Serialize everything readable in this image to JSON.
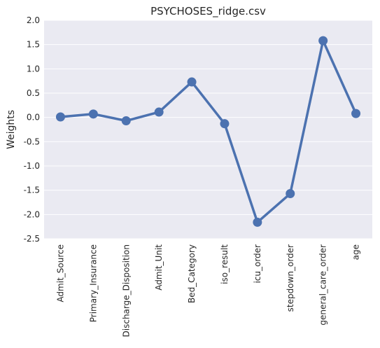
{
  "chart_data": {
    "type": "line",
    "title": "PSYCHOSES_ridge.csv",
    "xlabel": "",
    "ylabel": "Weights",
    "ylim": [
      -2.5,
      2.0
    ],
    "yticks": [
      "2.0",
      "1.5",
      "1.0",
      "0.5",
      "0.0",
      "-0.5",
      "-1.0",
      "-1.5",
      "-2.0",
      "-2.5"
    ],
    "categories": [
      "Admit_Source",
      "Primary_Insurance",
      "Discharge_Disposition",
      "Admit_Unit",
      "Bed_Category",
      "iso_result",
      "icu_order",
      "stepdown_order",
      "general_care_order",
      "age"
    ],
    "series": [
      {
        "values": [
          0.01,
          0.07,
          -0.07,
          0.11,
          0.73,
          -0.13,
          -2.16,
          -1.57,
          1.58,
          0.08
        ]
      }
    ],
    "grid": true,
    "colors": {
      "line": "#4c72b0",
      "background": "#eaeaf2",
      "grid": "#ffffff"
    }
  }
}
